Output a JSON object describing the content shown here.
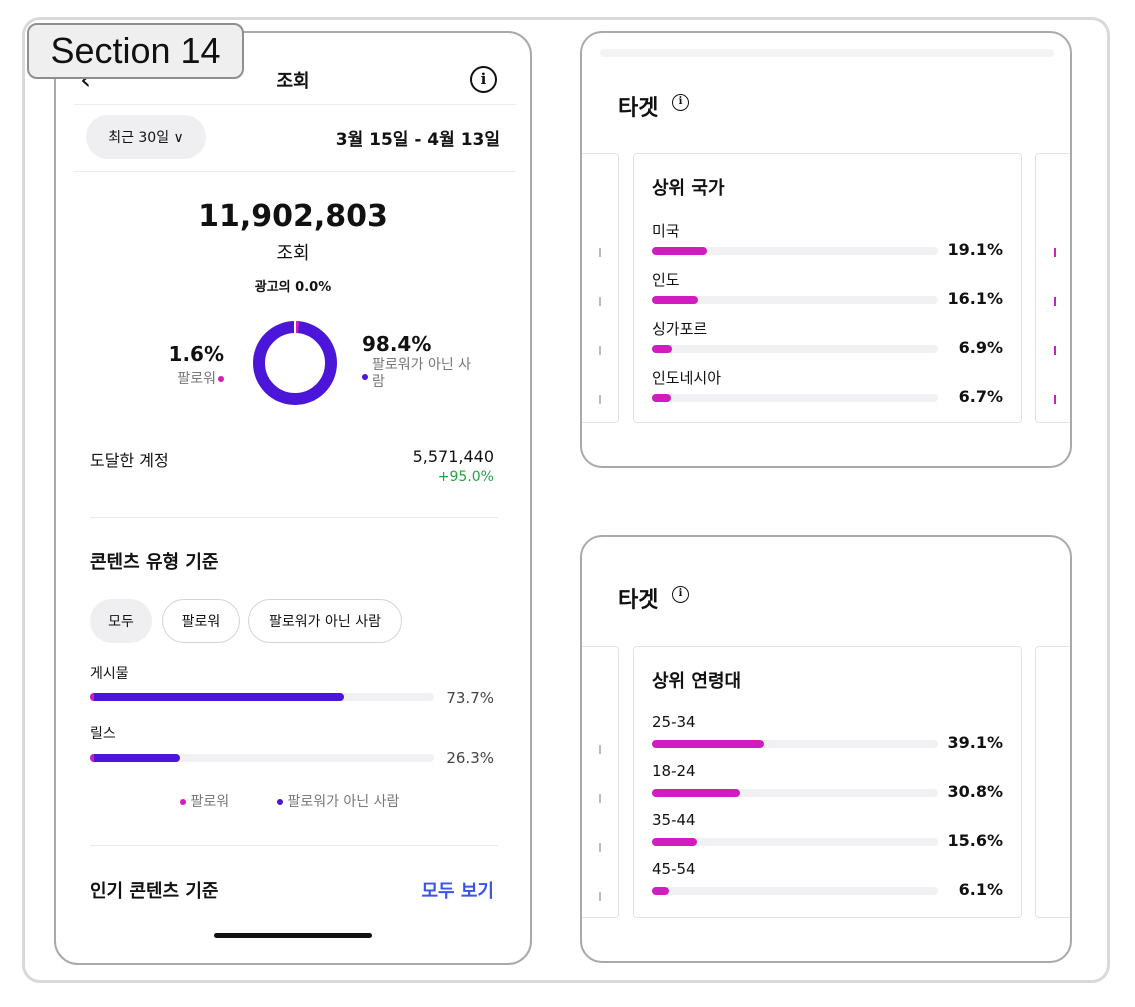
{
  "section_label": "Section 14",
  "phone": {
    "back_glyph": "‹",
    "title": "조회",
    "info_glyph": "i",
    "period_filter": "최근 30일 ∨",
    "date_range": "3월 15일 - 4월 13일",
    "total_views": "11,902,803",
    "total_views_unit": "조회",
    "ad_share": "광고의 0.0%",
    "donut": {
      "followers_pct": "1.6%",
      "followers_label": "팔로워",
      "followers_fraction": 0.016,
      "nonfollowers_pct": "98.4%",
      "nonfollowers_label": "팔로워가 아닌 사람"
    },
    "reach": {
      "label": "도달한 계정",
      "value": "5,571,440",
      "change": "+95.0%"
    },
    "content_type": {
      "title": "콘텐츠 유형 기준",
      "chips": [
        "모두",
        "팔로워",
        "팔로워가 아닌 사람"
      ],
      "rows": [
        {
          "label": "게시물",
          "pct": "73.7%",
          "fraction": 0.737
        },
        {
          "label": "릴스",
          "pct": "26.3%",
          "fraction": 0.263
        }
      ],
      "legend": [
        "팔로워",
        "팔로워가 아닌 사람"
      ]
    },
    "top_content": {
      "title": "인기 콘텐츠 기준",
      "see_all": "모두 보기"
    }
  },
  "target_countries": {
    "title": "타겟",
    "info_glyph": "i",
    "card_title": "상위 국가",
    "rows": [
      {
        "label": "미국",
        "pct": "19.1%",
        "fraction": 0.191
      },
      {
        "label": "인도",
        "pct": "16.1%",
        "fraction": 0.161
      },
      {
        "label": "싱가포르",
        "pct": "6.9%",
        "fraction": 0.069
      },
      {
        "label": "인도네시아",
        "pct": "6.7%",
        "fraction": 0.067
      }
    ]
  },
  "target_ages": {
    "title": "타겟",
    "info_glyph": "i",
    "card_title": "상위 연령대",
    "rows": [
      {
        "label": "25-34",
        "pct": "39.1%",
        "fraction": 0.391
      },
      {
        "label": "18-24",
        "pct": "30.8%",
        "fraction": 0.308
      },
      {
        "label": "35-44",
        "pct": "15.6%",
        "fraction": 0.156
      },
      {
        "label": "45-54",
        "pct": "6.1%",
        "fraction": 0.061
      }
    ]
  },
  "colors": {
    "followers": "#d11dc0",
    "nonfollowers": "#4c16d9",
    "link": "#3a55e6",
    "positive": "#27a046"
  }
}
